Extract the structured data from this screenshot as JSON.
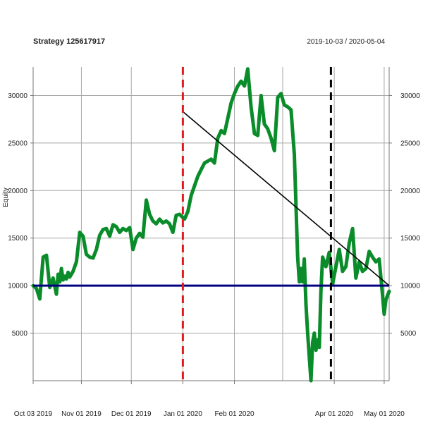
{
  "chart_data": {
    "type": "line",
    "title": "Strategy 125617917",
    "date_range": "2019-10-03 / 2020-05-04",
    "ylabel": "Equity",
    "xlim": [
      "2019-10-03",
      "2020-05-04"
    ],
    "ylim": [
      0,
      33000
    ],
    "x_ticks": [
      {
        "date": "2019-10-03",
        "label": "Oct 03 2019"
      },
      {
        "date": "2019-11-01",
        "label": "Nov 01 2019"
      },
      {
        "date": "2019-12-01",
        "label": "Dec 01 2019"
      },
      {
        "date": "2020-01-01",
        "label": "Jan 01 2020"
      },
      {
        "date": "2020-02-01",
        "label": "Feb 01 2020"
      },
      {
        "date": "2020-04-01",
        "label": "Apr 01 2020"
      },
      {
        "date": "2020-05-01",
        "label": "May 01 2020"
      }
    ],
    "x_grid": [
      "2019-10-03",
      "2019-11-01",
      "2019-12-01",
      "2020-01-01",
      "2020-02-01",
      "2020-03-01",
      "2020-04-01",
      "2020-05-01"
    ],
    "y_ticks": [
      5000,
      10000,
      15000,
      20000,
      25000,
      30000
    ],
    "grid": true,
    "series": [
      {
        "color": "#0a8c2a",
        "x": [
          "2019-10-03",
          "2019-10-05",
          "2019-10-07",
          "2019-10-09",
          "2019-10-11",
          "2019-10-13",
          "2019-10-15",
          "2019-10-17",
          "2019-10-18",
          "2019-10-19",
          "2019-10-20",
          "2019-10-21",
          "2019-10-22",
          "2019-10-23",
          "2019-10-24",
          "2019-10-25",
          "2019-10-26",
          "2019-10-27",
          "2019-10-29",
          "2019-10-31",
          "2019-11-02",
          "2019-11-04",
          "2019-11-06",
          "2019-11-08",
          "2019-11-10",
          "2019-11-12",
          "2019-11-14",
          "2019-11-16",
          "2019-11-18",
          "2019-11-20",
          "2019-11-22",
          "2019-11-24",
          "2019-11-26",
          "2019-11-28",
          "2019-11-30",
          "2019-12-02",
          "2019-12-04",
          "2019-12-06",
          "2019-12-08",
          "2019-12-10",
          "2019-12-12",
          "2019-12-14",
          "2019-12-16",
          "2019-12-18",
          "2019-12-20",
          "2019-12-22",
          "2019-12-24",
          "2019-12-26",
          "2019-12-28",
          "2019-12-30",
          "2020-01-02",
          "2020-01-04",
          "2020-01-06",
          "2020-01-08",
          "2020-01-10",
          "2020-01-12",
          "2020-01-14",
          "2020-01-16",
          "2020-01-18",
          "2020-01-20",
          "2020-01-22",
          "2020-01-24",
          "2020-01-26",
          "2020-01-28",
          "2020-01-30",
          "2020-02-01",
          "2020-02-03",
          "2020-02-05",
          "2020-02-07",
          "2020-02-09",
          "2020-02-11",
          "2020-02-13",
          "2020-02-15",
          "2020-02-17",
          "2020-02-19",
          "2020-02-21",
          "2020-02-23",
          "2020-02-25",
          "2020-02-27",
          "2020-02-29",
          "2020-03-02",
          "2020-03-04",
          "2020-03-06",
          "2020-03-08",
          "2020-03-10",
          "2020-03-11",
          "2020-03-12",
          "2020-03-13",
          "2020-03-14",
          "2020-03-15",
          "2020-03-16",
          "2020-03-17",
          "2020-03-18",
          "2020-03-19",
          "2020-03-20",
          "2020-03-21",
          "2020-03-22",
          "2020-03-23",
          "2020-03-24",
          "2020-03-25",
          "2020-03-27",
          "2020-03-29",
          "2020-03-31",
          "2020-04-02",
          "2020-04-04",
          "2020-04-06",
          "2020-04-08",
          "2020-04-10",
          "2020-04-12",
          "2020-04-14",
          "2020-04-16",
          "2020-04-18",
          "2020-04-20",
          "2020-04-22",
          "2020-04-24",
          "2020-04-26",
          "2020-04-28",
          "2020-04-30",
          "2020-05-01",
          "2020-05-02",
          "2020-05-04"
        ],
        "y": [
          10000,
          9700,
          8600,
          13000,
          13200,
          9800,
          10800,
          9100,
          11200,
          10400,
          11800,
          10600,
          11000,
          10700,
          11400,
          10900,
          11200,
          11500,
          12500,
          15600,
          15200,
          13300,
          13000,
          12900,
          13800,
          15300,
          15900,
          16000,
          15200,
          16400,
          16200,
          15600,
          16000,
          15800,
          16100,
          13800,
          15000,
          15500,
          15100,
          19000,
          17500,
          16800,
          16500,
          17000,
          16600,
          16800,
          16500,
          15600,
          17400,
          17500,
          17000,
          17800,
          19500,
          20500,
          21500,
          22200,
          22900,
          23100,
          23300,
          22900,
          25500,
          26300,
          26000,
          27600,
          29200,
          30200,
          31000,
          31500,
          31000,
          32800,
          28800,
          26000,
          25800,
          30000,
          27000,
          26500,
          25500,
          24200,
          29800,
          30200,
          29000,
          28800,
          28500,
          23800,
          13000,
          10400,
          11800,
          10400,
          12800,
          8000,
          5000,
          2500,
          0,
          4000,
          5000,
          3200,
          4300,
          3500,
          9400,
          13000,
          12000,
          13500,
          10200,
          12000,
          13800,
          11500,
          12000,
          14500,
          16000,
          10800,
          12500,
          11500,
          11800,
          13600,
          13000,
          12500,
          12800,
          9000,
          7000,
          8500,
          9400
        ]
      }
    ],
    "baseline": {
      "value": 10000,
      "color": "#00007f"
    },
    "trend_line": {
      "start": {
        "x": "2020-01-01",
        "y": 28300
      },
      "end": {
        "x": "2020-05-04",
        "y": 10000
      },
      "color": "#000000"
    },
    "markers": [
      {
        "x": "2020-01-01",
        "color": "#e31a1c",
        "style": "dashed"
      },
      {
        "x": "2020-03-30",
        "color": "#000000",
        "style": "dashed"
      }
    ]
  }
}
